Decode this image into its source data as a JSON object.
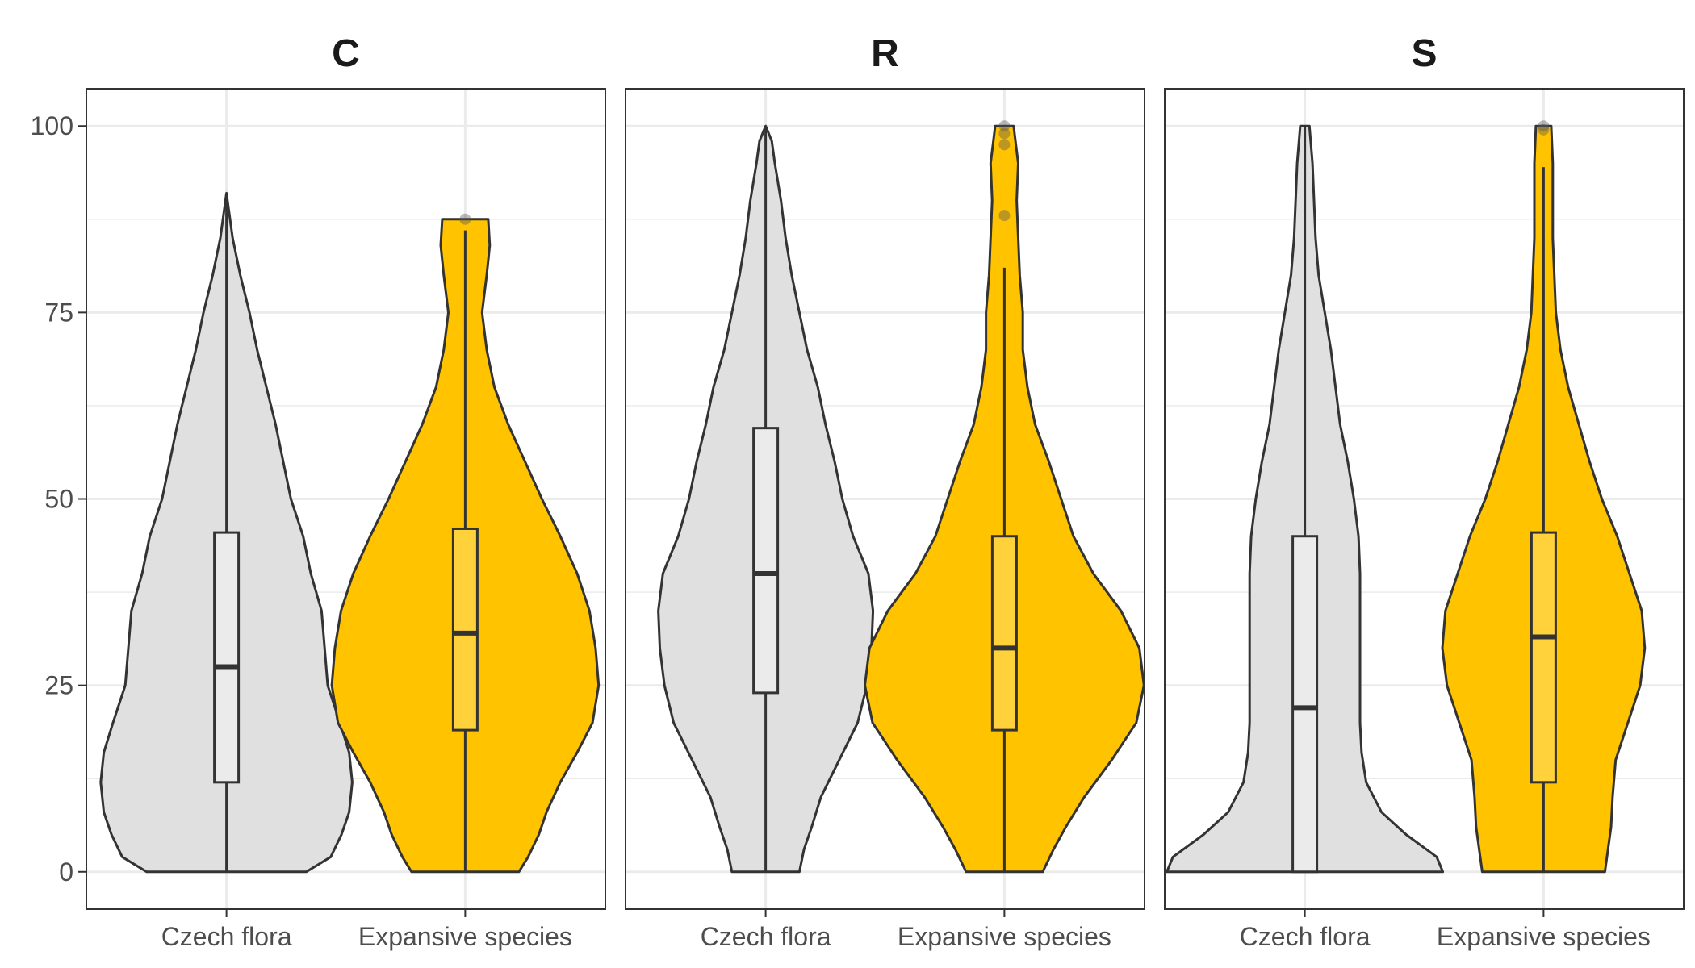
{
  "chart_data": {
    "type": "violin",
    "facets": [
      "C",
      "R",
      "S"
    ],
    "categories": [
      "Czech flora",
      "Expansive species"
    ],
    "colors": {
      "Czech flora": "#e0e0e0",
      "Expansive species": "#ffc300",
      "outline": "#333333",
      "grid": "#ebebeb",
      "panel_border": "#333333"
    },
    "ylim": [
      -5,
      105
    ],
    "yticks": [
      0,
      25,
      50,
      75,
      100
    ],
    "grid": true,
    "panels": [
      {
        "title": "C",
        "groups": [
          {
            "category": "Czech flora",
            "box": {
              "q1": 12,
              "median": 27.5,
              "q3": 45.5,
              "whisker_low": 0,
              "whisker_high": 91
            },
            "outliers": [],
            "density": [
              [
                0,
                0.52
              ],
              [
                2,
                0.68
              ],
              [
                5,
                0.75
              ],
              [
                8,
                0.8
              ],
              [
                12,
                0.82
              ],
              [
                16,
                0.8
              ],
              [
                20,
                0.74
              ],
              [
                25,
                0.66
              ],
              [
                30,
                0.64
              ],
              [
                35,
                0.62
              ],
              [
                40,
                0.55
              ],
              [
                45,
                0.5
              ],
              [
                50,
                0.42
              ],
              [
                55,
                0.37
              ],
              [
                60,
                0.32
              ],
              [
                65,
                0.26
              ],
              [
                70,
                0.2
              ],
              [
                75,
                0.15
              ],
              [
                80,
                0.09
              ],
              [
                85,
                0.04
              ],
              [
                88,
                0.02
              ],
              [
                91,
                0.0
              ]
            ]
          },
          {
            "category": "Expansive species",
            "box": {
              "q1": 19,
              "median": 32,
              "q3": 46,
              "whisker_low": 0,
              "whisker_high": 86
            },
            "outliers": [
              87.5
            ],
            "density": [
              [
                0,
                0.35
              ],
              [
                2,
                0.41
              ],
              [
                5,
                0.48
              ],
              [
                8,
                0.53
              ],
              [
                12,
                0.62
              ],
              [
                16,
                0.73
              ],
              [
                20,
                0.83
              ],
              [
                25,
                0.87
              ],
              [
                30,
                0.85
              ],
              [
                35,
                0.81
              ],
              [
                40,
                0.73
              ],
              [
                45,
                0.62
              ],
              [
                50,
                0.5
              ],
              [
                55,
                0.39
              ],
              [
                60,
                0.28
              ],
              [
                65,
                0.19
              ],
              [
                70,
                0.14
              ],
              [
                75,
                0.11
              ],
              [
                80,
                0.14
              ],
              [
                84,
                0.16
              ],
              [
                87.5,
                0.15
              ]
            ]
          }
        ]
      },
      {
        "title": "R",
        "groups": [
          {
            "category": "Czech flora",
            "box": {
              "q1": 24,
              "median": 40,
              "q3": 59.5,
              "whisker_low": 0,
              "whisker_high": 100
            },
            "outliers": [],
            "density": [
              [
                0,
                0.22
              ],
              [
                3,
                0.25
              ],
              [
                6,
                0.3
              ],
              [
                10,
                0.36
              ],
              [
                15,
                0.48
              ],
              [
                20,
                0.6
              ],
              [
                25,
                0.66
              ],
              [
                30,
                0.69
              ],
              [
                35,
                0.7
              ],
              [
                40,
                0.67
              ],
              [
                45,
                0.57
              ],
              [
                50,
                0.5
              ],
              [
                55,
                0.45
              ],
              [
                60,
                0.39
              ],
              [
                65,
                0.34
              ],
              [
                70,
                0.27
              ],
              [
                75,
                0.22
              ],
              [
                80,
                0.17
              ],
              [
                85,
                0.13
              ],
              [
                90,
                0.1
              ],
              [
                95,
                0.06
              ],
              [
                98,
                0.04
              ],
              [
                100,
                0.0
              ]
            ]
          },
          {
            "category": "Expansive species",
            "box": {
              "q1": 19,
              "median": 30,
              "q3": 45,
              "whisker_low": 0,
              "whisker_high": 81
            },
            "outliers": [
              88,
              97.5,
              99,
              100
            ],
            "density": [
              [
                0,
                0.25
              ],
              [
                3,
                0.32
              ],
              [
                6,
                0.4
              ],
              [
                10,
                0.52
              ],
              [
                15,
                0.7
              ],
              [
                20,
                0.86
              ],
              [
                25,
                0.91
              ],
              [
                30,
                0.88
              ],
              [
                35,
                0.76
              ],
              [
                40,
                0.58
              ],
              [
                45,
                0.45
              ],
              [
                50,
                0.37
              ],
              [
                55,
                0.29
              ],
              [
                60,
                0.2
              ],
              [
                65,
                0.15
              ],
              [
                70,
                0.12
              ],
              [
                75,
                0.12
              ],
              [
                80,
                0.1
              ],
              [
                85,
                0.09
              ],
              [
                90,
                0.08
              ],
              [
                95,
                0.09
              ],
              [
                100,
                0.06
              ]
            ]
          }
        ]
      },
      {
        "title": "S",
        "groups": [
          {
            "category": "Czech flora",
            "box": {
              "q1": 0,
              "median": 22,
              "q3": 45,
              "whisker_low": 0,
              "whisker_high": 100
            },
            "outliers": [],
            "density": [
              [
                0,
                0.9
              ],
              [
                2,
                0.86
              ],
              [
                5,
                0.66
              ],
              [
                8,
                0.5
              ],
              [
                12,
                0.4
              ],
              [
                16,
                0.37
              ],
              [
                20,
                0.36
              ],
              [
                25,
                0.36
              ],
              [
                30,
                0.36
              ],
              [
                35,
                0.36
              ],
              [
                40,
                0.36
              ],
              [
                45,
                0.35
              ],
              [
                50,
                0.32
              ],
              [
                55,
                0.28
              ],
              [
                60,
                0.23
              ],
              [
                65,
                0.2
              ],
              [
                70,
                0.17
              ],
              [
                75,
                0.13
              ],
              [
                80,
                0.09
              ],
              [
                85,
                0.07
              ],
              [
                90,
                0.06
              ],
              [
                95,
                0.05
              ],
              [
                100,
                0.03
              ]
            ]
          },
          {
            "category": "Expansive species",
            "box": {
              "q1": 12,
              "median": 31.5,
              "q3": 45.5,
              "whisker_low": 0,
              "whisker_high": 94.5
            },
            "outliers": [
              99.5,
              100
            ],
            "density": [
              [
                0,
                0.4
              ],
              [
                3,
                0.42
              ],
              [
                6,
                0.44
              ],
              [
                10,
                0.45
              ],
              [
                15,
                0.47
              ],
              [
                20,
                0.55
              ],
              [
                25,
                0.63
              ],
              [
                30,
                0.66
              ],
              [
                35,
                0.64
              ],
              [
                40,
                0.56
              ],
              [
                45,
                0.48
              ],
              [
                50,
                0.38
              ],
              [
                55,
                0.3
              ],
              [
                60,
                0.23
              ],
              [
                65,
                0.16
              ],
              [
                70,
                0.11
              ],
              [
                75,
                0.08
              ],
              [
                80,
                0.07
              ],
              [
                85,
                0.06
              ],
              [
                90,
                0.06
              ],
              [
                95,
                0.06
              ],
              [
                100,
                0.05
              ]
            ]
          }
        ]
      }
    ]
  }
}
